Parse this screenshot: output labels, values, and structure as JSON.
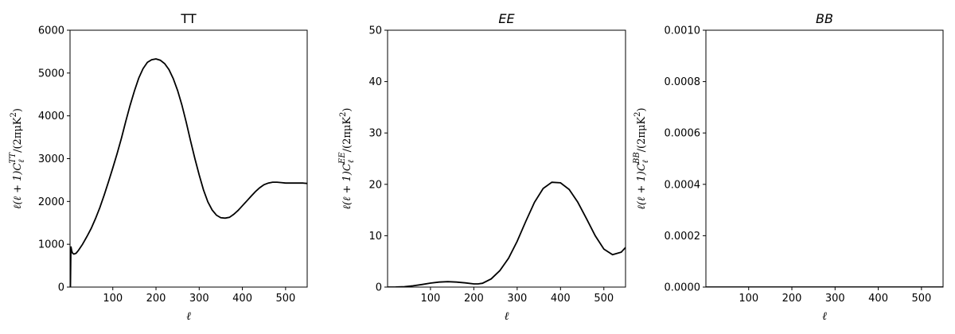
{
  "chart_data": [
    {
      "type": "line",
      "title": "TT",
      "xlabel": "ℓ",
      "ylabel": {
        "pre": "ℓ(ℓ + 1)C",
        "sub": "ℓ",
        "sup": "TT",
        "post": "/(2πμK",
        "post_sup": "2",
        "close": ")"
      },
      "xlim": [
        1,
        550
      ],
      "ylim": [
        0,
        6000
      ],
      "xticks": [
        100,
        200,
        300,
        400,
        500
      ],
      "yticks": [
        0,
        1000,
        2000,
        3000,
        4000,
        5000,
        6000
      ],
      "series": [
        {
          "color": "#000000",
          "x": [
            2,
            3,
            4,
            5,
            7,
            10,
            15,
            20,
            30,
            40,
            50,
            60,
            70,
            80,
            90,
            100,
            110,
            120,
            130,
            140,
            150,
            160,
            170,
            180,
            190,
            200,
            210,
            220,
            230,
            240,
            250,
            260,
            270,
            280,
            290,
            300,
            310,
            320,
            330,
            340,
            350,
            360,
            370,
            380,
            390,
            400,
            410,
            420,
            430,
            440,
            450,
            460,
            470,
            480,
            490,
            500,
            510,
            520,
            530,
            540,
            550
          ],
          "y": [
            0,
            950,
            900,
            840,
            790,
            770,
            790,
            850,
            1000,
            1180,
            1370,
            1600,
            1860,
            2150,
            2460,
            2780,
            3120,
            3480,
            3870,
            4240,
            4580,
            4880,
            5100,
            5250,
            5310,
            5330,
            5300,
            5220,
            5080,
            4870,
            4590,
            4250,
            3850,
            3420,
            3000,
            2620,
            2270,
            1990,
            1800,
            1680,
            1620,
            1610,
            1630,
            1700,
            1790,
            1900,
            2010,
            2120,
            2230,
            2320,
            2390,
            2430,
            2450,
            2450,
            2440,
            2430,
            2430,
            2430,
            2430,
            2430,
            2420
          ]
        }
      ]
    },
    {
      "type": "line",
      "title": "EE",
      "xlabel": "ℓ",
      "ylabel": {
        "pre": "ℓ(ℓ + 1)C",
        "sub": "ℓ",
        "sup": "EE",
        "post": "/(2πμK",
        "post_sup": "2",
        "close": ")"
      },
      "xlim": [
        1,
        550
      ],
      "ylim": [
        0,
        50
      ],
      "xticks": [
        100,
        200,
        300,
        400,
        500
      ],
      "yticks": [
        0,
        10,
        20,
        30,
        40,
        50
      ],
      "series": [
        {
          "color": "#000000",
          "x": [
            2,
            20,
            40,
            60,
            80,
            100,
            120,
            140,
            160,
            180,
            200,
            210,
            220,
            240,
            260,
            280,
            300,
            320,
            340,
            360,
            380,
            400,
            420,
            440,
            460,
            480,
            500,
            520,
            540,
            550
          ],
          "y": [
            0.0,
            0.02,
            0.08,
            0.25,
            0.5,
            0.78,
            0.98,
            1.05,
            0.98,
            0.82,
            0.62,
            0.62,
            0.75,
            1.6,
            3.2,
            5.6,
            8.9,
            12.8,
            16.5,
            19.2,
            20.4,
            20.3,
            19.0,
            16.5,
            13.3,
            10.0,
            7.4,
            6.3,
            6.8,
            7.7
          ]
        }
      ]
    },
    {
      "type": "line",
      "title": "BB",
      "xlabel": "ℓ",
      "ylabel": {
        "pre": "ℓ(ℓ + 1)C",
        "sub": "ℓ",
        "sup": "BB",
        "post": "/(2πμK",
        "post_sup": "2",
        "close": ")"
      },
      "xlim": [
        1,
        550
      ],
      "ylim": [
        0,
        0.001
      ],
      "xticks": [
        100,
        200,
        300,
        400,
        500
      ],
      "yticks": [
        0,
        0.0002,
        0.0004,
        0.0006,
        0.0008,
        0.001
      ],
      "ytick_labels": [
        "0.0000",
        "0.0002",
        "0.0004",
        "0.0006",
        "0.0008",
        "0.0010"
      ],
      "series": [
        {
          "color": "#000000",
          "x": [
            2,
            100,
            200,
            300,
            400,
            500,
            550
          ],
          "y": [
            0,
            0,
            0,
            0,
            0,
            0,
            0
          ]
        }
      ]
    }
  ]
}
